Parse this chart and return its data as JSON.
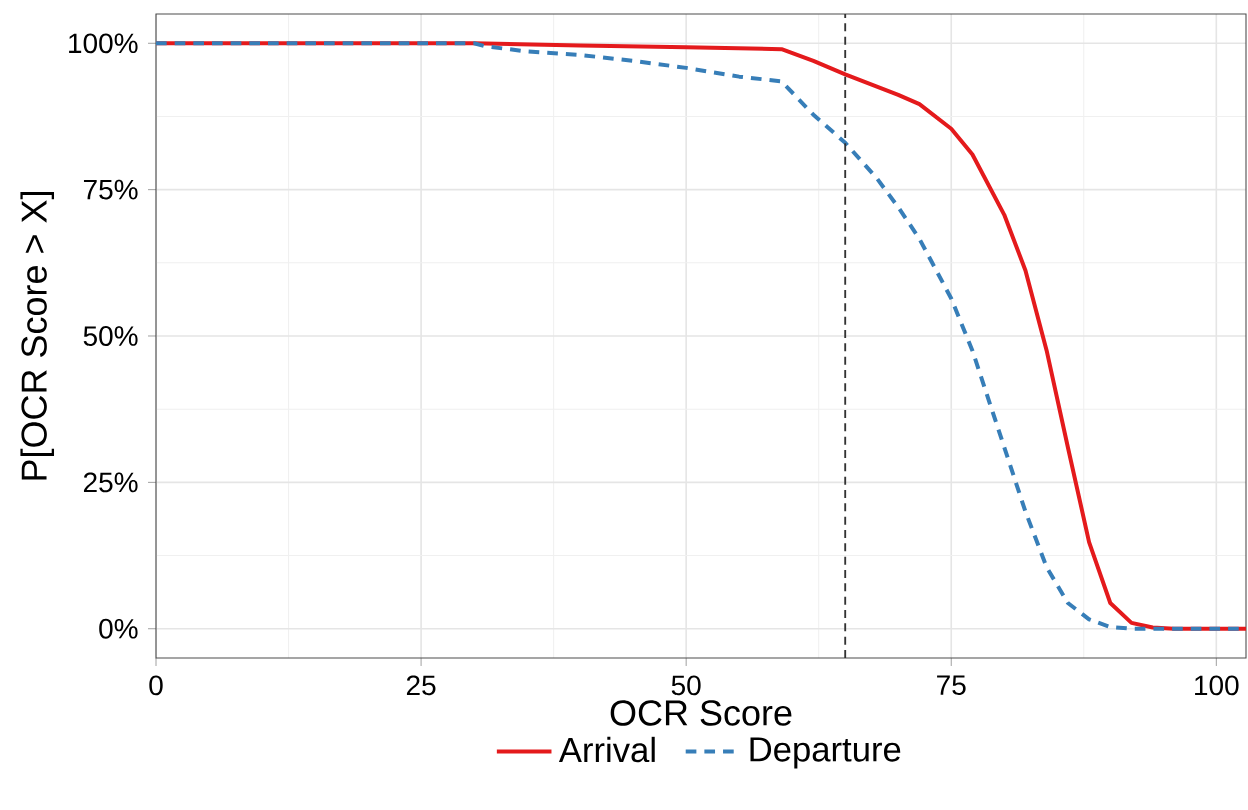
{
  "chart_data": {
    "type": "line",
    "xlabel": "OCR Score",
    "ylabel": "P[OCR Score > X]",
    "xlim": [
      0,
      102.8
    ],
    "ylim": [
      -5,
      105
    ],
    "xticks": [
      0,
      25,
      50,
      75,
      100
    ],
    "yticks": [
      {
        "value": 0,
        "label": "0%"
      },
      {
        "value": 25,
        "label": "25%"
      },
      {
        "value": 50,
        "label": "50%"
      },
      {
        "value": 75,
        "label": "75%"
      },
      {
        "value": 100,
        "label": "100%"
      }
    ],
    "grid": true,
    "legend": "bottom",
    "ref_lines": [
      {
        "axis": "x",
        "value": 65,
        "color": "#333333",
        "line_style": "dashed"
      }
    ],
    "series": [
      {
        "name": "Arrival",
        "color": "#e41a1c",
        "line_style": "solid",
        "x": [
          0,
          30,
          40,
          50,
          59,
          62,
          65,
          70,
          72,
          75,
          77,
          80,
          82,
          84,
          86,
          88,
          90,
          92,
          94,
          96,
          102.8
        ],
        "values": [
          100,
          100,
          99.6,
          99.3,
          99,
          97,
          94.7,
          91.2,
          89.6,
          85.4,
          81,
          70.7,
          61.2,
          47.5,
          31,
          14.8,
          4.4,
          1,
          0.2,
          0,
          0
        ]
      },
      {
        "name": "Departure",
        "color": "#377eb8",
        "line_style": "dashed",
        "x": [
          0,
          30,
          31,
          35,
          40,
          45,
          50,
          55,
          59,
          62,
          65,
          68,
          70,
          72,
          75,
          77,
          80,
          82,
          84,
          86,
          88,
          90,
          92,
          102.8
        ],
        "values": [
          100,
          100,
          99.5,
          98.6,
          98,
          97,
          95.8,
          94.3,
          93.5,
          87.8,
          83,
          76.9,
          72,
          66.6,
          56.4,
          47.5,
          31,
          20,
          10.5,
          4.4,
          1.6,
          0.3,
          0,
          0
        ]
      }
    ]
  }
}
